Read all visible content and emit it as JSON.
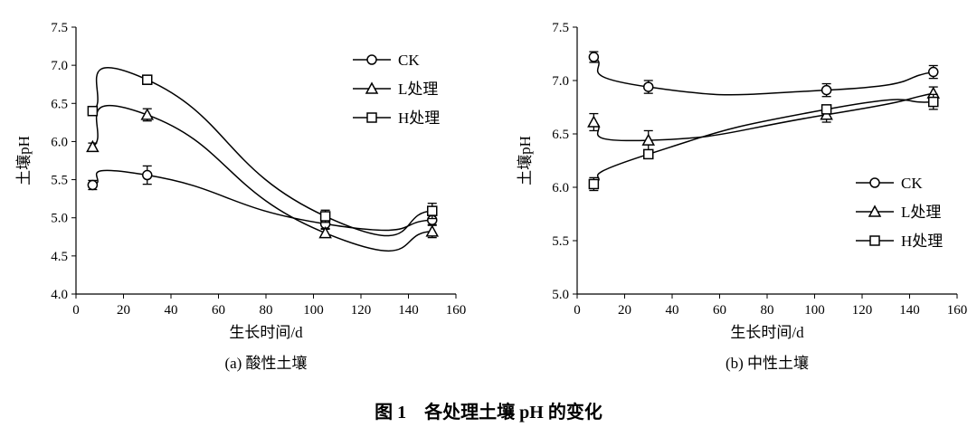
{
  "figure_caption": "图 1　各处理土壤 pH 的变化",
  "chart_data": [
    {
      "type": "line",
      "subtitle": "(a) 酸性土壤",
      "xlabel": "生长时间/d",
      "ylabel": "土壤pH",
      "xlim": [
        0,
        160
      ],
      "ylim": [
        4.0,
        7.5
      ],
      "xticks": [
        "0",
        "20",
        "40",
        "60",
        "80",
        "100",
        "120",
        "140",
        "160"
      ],
      "yticks": [
        "4.0",
        "4.5",
        "5.0",
        "5.5",
        "6.0",
        "6.5",
        "7.0",
        "7.5"
      ],
      "legend_position": "top-right",
      "x": [
        7,
        30,
        105,
        150
      ],
      "series": [
        {
          "name": "CK",
          "marker": "circle",
          "values": [
            5.43,
            5.56,
            4.92,
            4.97
          ],
          "errors": [
            0.06,
            0.12,
            0.06,
            0.06
          ]
        },
        {
          "name": "L处理",
          "marker": "triangle",
          "values": [
            5.93,
            6.35,
            4.8,
            4.82
          ],
          "errors": [
            0.05,
            0.08,
            0.05,
            0.08
          ]
        },
        {
          "name": "H处理",
          "marker": "square",
          "values": [
            6.4,
            6.81,
            5.02,
            5.09
          ],
          "errors": [
            0.03,
            0.06,
            0.08,
            0.1
          ]
        }
      ]
    },
    {
      "type": "line",
      "subtitle": "(b) 中性土壤",
      "xlabel": "生长时间/d",
      "ylabel": "土壤pH",
      "xlim": [
        0,
        160
      ],
      "ylim": [
        5.0,
        7.5
      ],
      "xticks": [
        "0",
        "20",
        "40",
        "60",
        "80",
        "100",
        "120",
        "140",
        "160"
      ],
      "yticks": [
        "5.0",
        "5.5",
        "6.0",
        "6.5",
        "7.0",
        "7.5"
      ],
      "legend_position": "bottom-right",
      "x": [
        7,
        30,
        105,
        150
      ],
      "series": [
        {
          "name": "CK",
          "marker": "circle",
          "values": [
            7.22,
            6.94,
            6.91,
            7.08
          ],
          "errors": [
            0.05,
            0.06,
            0.06,
            0.06
          ]
        },
        {
          "name": "L处理",
          "marker": "triangle",
          "values": [
            6.61,
            6.44,
            6.68,
            6.88
          ],
          "errors": [
            0.08,
            0.09,
            0.07,
            0.06
          ]
        },
        {
          "name": "H处理",
          "marker": "square",
          "values": [
            6.03,
            6.31,
            6.73,
            6.8
          ],
          "errors": [
            0.06,
            0.04,
            0.04,
            0.07
          ]
        }
      ]
    }
  ]
}
